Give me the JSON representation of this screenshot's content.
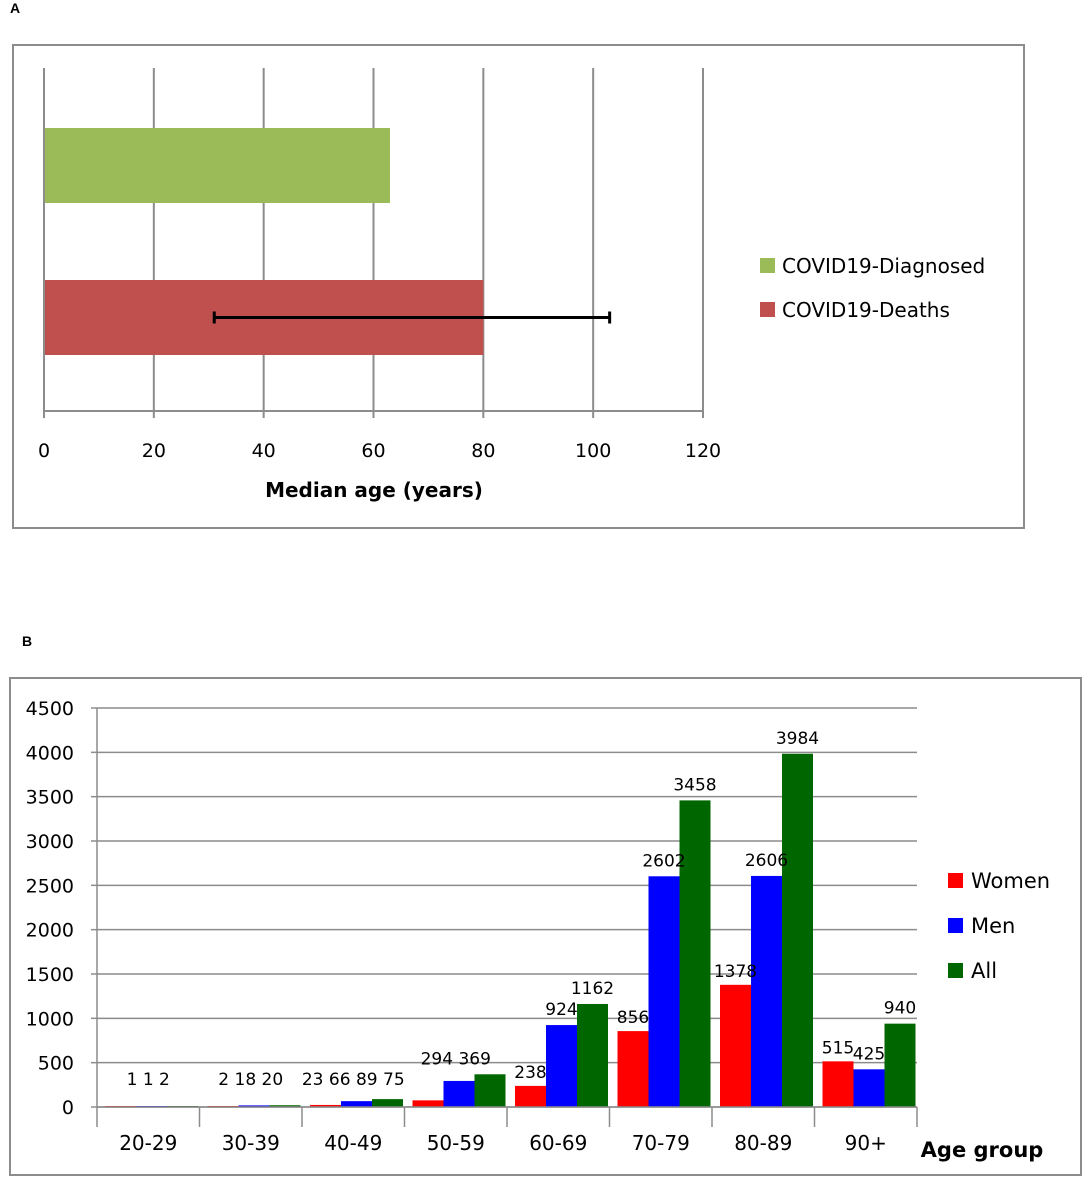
{
  "panels": {
    "a_label": "A",
    "b_label": "B"
  },
  "chart_data": [
    {
      "type": "bar",
      "orientation": "horizontal",
      "categories": [
        "COVID19-Diagnosed",
        "COVID19-Deaths"
      ],
      "values": [
        63,
        80
      ],
      "colors": [
        "#9bbb59",
        "#c0504d"
      ],
      "error_bar": {
        "category": "COVID19-Deaths",
        "low": 31,
        "high": 103
      },
      "xlabel": "Median age (years)",
      "ylabel": "",
      "xlim": [
        0,
        120
      ],
      "xticks": [
        "0",
        "20",
        "40",
        "60",
        "80",
        "100",
        "120"
      ],
      "grid": "vertical",
      "legend": {
        "position": "right",
        "entries": [
          "COVID19-Diagnosed",
          "COVID19-Deaths"
        ]
      }
    },
    {
      "type": "bar",
      "categories": [
        "20-29",
        "30-39",
        "40-49",
        "50-59",
        "60-69",
        "70-79",
        "80-89",
        "90+"
      ],
      "series": [
        {
          "name": "Women",
          "color": "#ff0000",
          "values": [
            1,
            2,
            23,
            75,
            238,
            856,
            1378,
            515
          ]
        },
        {
          "name": "Men",
          "color": "#0000ff",
          "values": [
            1,
            18,
            66,
            294,
            924,
            2602,
            2606,
            425
          ]
        },
        {
          "name": "All",
          "color": "#006600",
          "values": [
            2,
            20,
            89,
            369,
            1162,
            3458,
            3984,
            940
          ]
        }
      ],
      "value_labels": [
        [
          "1",
          "1",
          "2"
        ],
        [
          "2",
          "18",
          "20"
        ],
        [
          "23",
          "66",
          "89",
          "75"
        ],
        [
          "294",
          "369"
        ],
        [
          "238",
          "924",
          "1162"
        ],
        [
          "856",
          "2602",
          "3458"
        ],
        [
          "1378",
          "2606",
          "3984"
        ],
        [
          "515",
          "425",
          "940"
        ]
      ],
      "xlabel": "Age group",
      "ylabel": "",
      "ylim": [
        0,
        4500
      ],
      "yticks": [
        "0",
        "500",
        "1000",
        "1500",
        "2000",
        "2500",
        "3000",
        "3500",
        "4000",
        "4500"
      ],
      "grid": "horizontal",
      "legend": {
        "position": "right",
        "entries": [
          "Women",
          "Men",
          "All"
        ]
      }
    }
  ]
}
